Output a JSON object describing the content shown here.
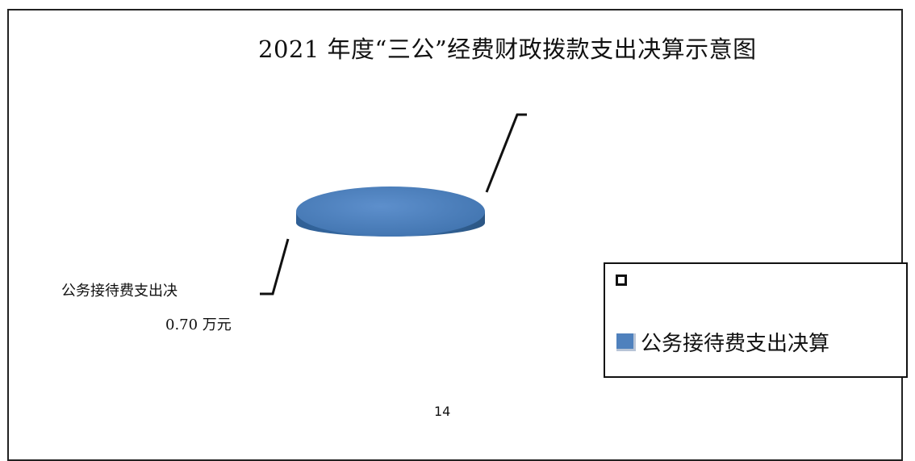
{
  "page": {
    "page_number": "14"
  },
  "chart_data": {
    "type": "pie",
    "title": "2021 年度“三公”经费财政拨款支出决算示意图",
    "categories": [
      "公务接待费支出决算"
    ],
    "values": [
      0.7
    ],
    "data_labels": [
      {
        "name": "公务接待费支出决",
        "value": "0.70 万元"
      }
    ],
    "legend": {
      "placement": "bottom-right",
      "entries": [
        "",
        "公务接待费支出决算"
      ]
    },
    "colors": {
      "slice": "#4f81bd"
    },
    "style": "3d"
  }
}
